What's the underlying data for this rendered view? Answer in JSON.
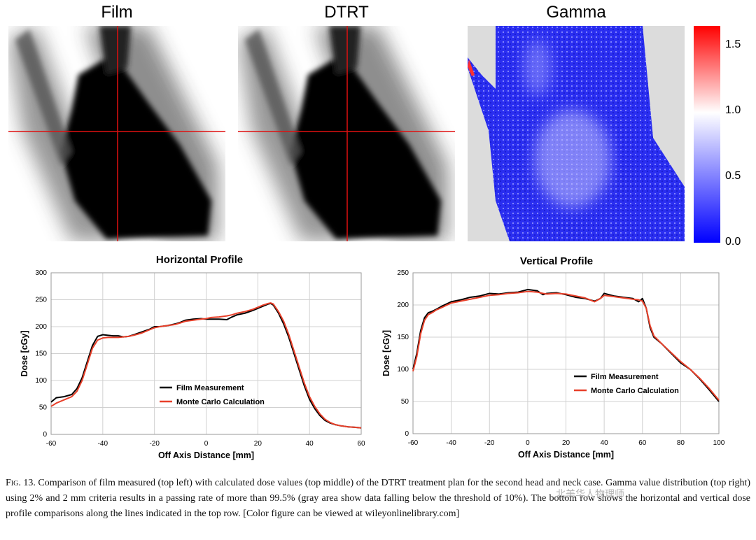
{
  "panels": {
    "film_title": "Film",
    "dtrt_title": "DTRT",
    "gamma_title": "Gamma",
    "colorbar": {
      "ticks": [
        "1.5",
        "1.0",
        "0.5",
        "0.0"
      ],
      "values": [
        1.5,
        1.0,
        0.5,
        0.0
      ],
      "max": 1.65,
      "min": 0,
      "colors": [
        "#ff0000",
        "#ffffff",
        "#0000ff"
      ]
    }
  },
  "chart_data": [
    {
      "type": "line",
      "title": "Horizontal Profile",
      "xlabel": "Off Axis Distance [mm]",
      "ylabel": "Dose [cGy]",
      "xlim": [
        -60,
        60
      ],
      "ylim": [
        0,
        300
      ],
      "xticks": [
        -60,
        -40,
        -20,
        0,
        20,
        40,
        60
      ],
      "yticks": [
        0,
        50,
        100,
        150,
        200,
        250,
        300
      ],
      "grid": true,
      "legend_position": "center-left",
      "series": [
        {
          "name": "Film Measurement",
          "color": "#000000",
          "x": [
            -60,
            -58,
            -55,
            -52,
            -50,
            -48,
            -46,
            -44,
            -42,
            -40,
            -38,
            -36,
            -34,
            -32,
            -30,
            -28,
            -25,
            -22,
            -20,
            -18,
            -15,
            -12,
            -10,
            -8,
            -5,
            -2,
            0,
            2,
            5,
            8,
            10,
            12,
            15,
            18,
            20,
            22,
            24,
            25,
            26,
            28,
            30,
            32,
            34,
            36,
            38,
            40,
            42,
            44,
            46,
            48,
            50,
            52,
            55,
            58,
            60
          ],
          "y": [
            60,
            68,
            70,
            74,
            85,
            105,
            135,
            165,
            182,
            185,
            184,
            183,
            183,
            181,
            182,
            185,
            190,
            195,
            200,
            200,
            202,
            205,
            208,
            212,
            214,
            215,
            214,
            214,
            214,
            213,
            218,
            222,
            225,
            230,
            234,
            238,
            242,
            243,
            240,
            225,
            205,
            180,
            150,
            120,
            90,
            65,
            48,
            35,
            26,
            21,
            18,
            16,
            14,
            13,
            12
          ]
        },
        {
          "name": "Monte Carlo Calculation",
          "color": "#e8402a",
          "x": [
            -60,
            -58,
            -55,
            -52,
            -50,
            -48,
            -46,
            -44,
            -42,
            -40,
            -38,
            -36,
            -34,
            -32,
            -30,
            -28,
            -25,
            -22,
            -20,
            -18,
            -15,
            -12,
            -10,
            -8,
            -5,
            -2,
            0,
            2,
            5,
            8,
            10,
            12,
            15,
            18,
            20,
            22,
            24,
            25,
            26,
            28,
            30,
            32,
            34,
            36,
            38,
            40,
            42,
            44,
            46,
            48,
            50,
            52,
            55,
            58,
            60
          ],
          "y": [
            52,
            58,
            64,
            70,
            80,
            100,
            130,
            160,
            175,
            179,
            180,
            180,
            180,
            181,
            182,
            184,
            188,
            194,
            198,
            200,
            202,
            204,
            207,
            210,
            212,
            214,
            215,
            217,
            218,
            220,
            222,
            225,
            228,
            232,
            236,
            240,
            243,
            244,
            242,
            228,
            210,
            185,
            155,
            125,
            95,
            70,
            52,
            38,
            28,
            22,
            18,
            16,
            14,
            13,
            12
          ]
        }
      ]
    },
    {
      "type": "line",
      "title": "Vertical Profile",
      "xlabel": "Off Axis Distance [mm]",
      "ylabel": "Dose [cGy]",
      "xlim": [
        -60,
        100
      ],
      "ylim": [
        0,
        250
      ],
      "xticks": [
        -60,
        -40,
        -20,
        0,
        20,
        40,
        60,
        80,
        100
      ],
      "yticks": [
        0,
        50,
        100,
        150,
        200,
        250
      ],
      "grid": true,
      "legend_position": "bottom-center",
      "series": [
        {
          "name": "Film Measurement",
          "color": "#000000",
          "x": [
            -60,
            -58,
            -56,
            -54,
            -52,
            -50,
            -48,
            -45,
            -40,
            -35,
            -30,
            -25,
            -20,
            -15,
            -10,
            -5,
            0,
            5,
            8,
            10,
            15,
            20,
            25,
            30,
            35,
            38,
            40,
            45,
            50,
            55,
            58,
            60,
            62,
            64,
            66,
            68,
            70,
            75,
            80,
            85,
            90,
            95,
            100
          ],
          "y": [
            100,
            125,
            160,
            180,
            188,
            190,
            193,
            198,
            205,
            208,
            212,
            214,
            218,
            217,
            219,
            220,
            224,
            222,
            216,
            218,
            219,
            216,
            212,
            210,
            206,
            210,
            218,
            214,
            212,
            210,
            205,
            210,
            195,
            165,
            150,
            145,
            140,
            125,
            110,
            100,
            85,
            68,
            50
          ]
        },
        {
          "name": "Monte Carlo Calculation",
          "color": "#e8402a",
          "x": [
            -60,
            -58,
            -56,
            -54,
            -52,
            -50,
            -48,
            -45,
            -40,
            -35,
            -30,
            -25,
            -20,
            -15,
            -10,
            -5,
            0,
            5,
            8,
            10,
            15,
            20,
            25,
            30,
            35,
            38,
            40,
            45,
            50,
            55,
            58,
            60,
            62,
            64,
            66,
            68,
            70,
            75,
            80,
            85,
            90,
            95,
            100
          ],
          "y": [
            97,
            120,
            155,
            176,
            185,
            188,
            192,
            196,
            203,
            206,
            209,
            212,
            215,
            216,
            218,
            219,
            221,
            220,
            218,
            217,
            218,
            217,
            214,
            211,
            205,
            210,
            215,
            213,
            211,
            209,
            208,
            206,
            195,
            168,
            152,
            146,
            140,
            126,
            112,
            100,
            86,
            70,
            52
          ]
        }
      ]
    }
  ],
  "caption": {
    "fig_label": "Fig. 13.",
    "text": "Comparison of film measured (top left) with calculated dose values (top middle) of the DTRT treatment plan for the second head and neck case. Gamma value distribution (top right) using 2% and 2 mm criteria results in a passing rate of more than 99.5% (gray area show data falling below the threshold of 10%). The bottom row shows the horizontal and vertical dose profile comparisons along the lines indicated in the top row. [Color figure can be viewed at wileyonlinelibrary.com]"
  },
  "watermark": "北美华人物理师"
}
